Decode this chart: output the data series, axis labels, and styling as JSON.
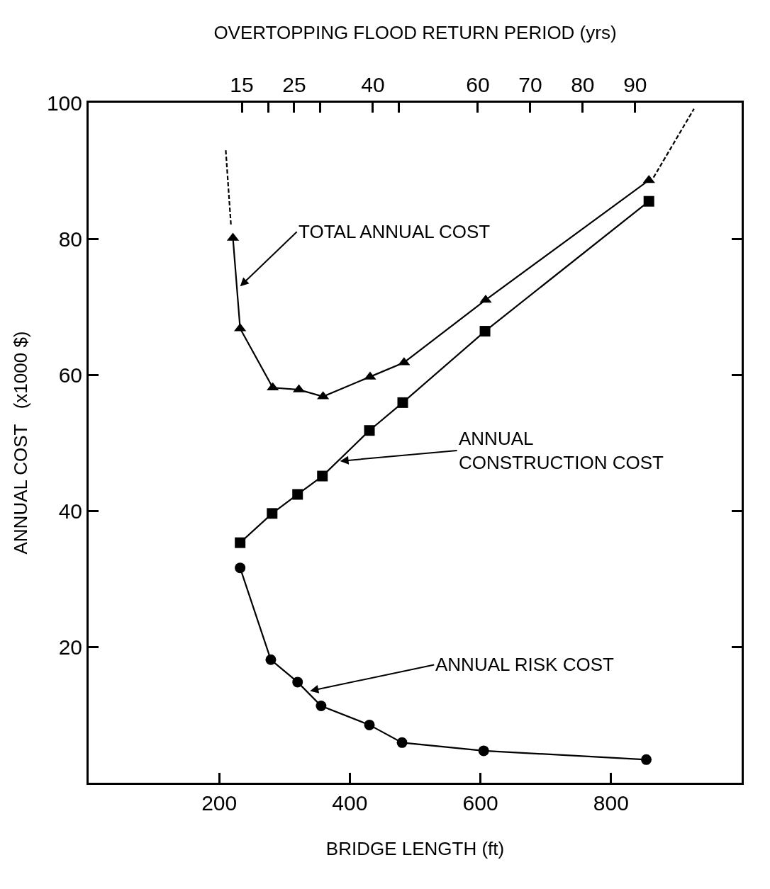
{
  "chart_data": {
    "type": "line",
    "xlabel": "BRIDGE LENGTH (ft)",
    "ylabel": "ANNUAL COST   (x1000 $)",
    "x2label": "OVERTOPPING FLOOD RETURN PERIOD (yrs)",
    "series": [
      {
        "color": "#000000",
        "marker": "triangle",
        "line_style": "solid",
        "x": [
          221,
          232,
          282,
          322,
          359,
          431,
          483,
          608,
          858
        ],
        "values": [
          80.1,
          66.8,
          58.1,
          57.8,
          56.8,
          59.7,
          61.8,
          71.0,
          88.6
        ]
      },
      {
        "color": "#000000",
        "marker": "square",
        "line_style": "solid",
        "x": [
          232,
          281,
          320,
          358,
          430,
          481,
          607,
          858
        ],
        "values": [
          35.3,
          39.6,
          42.4,
          45.1,
          51.8,
          55.9,
          66.4,
          85.5
        ]
      },
      {
        "color": "#000000",
        "marker": "circle",
        "line_style": "solid",
        "x": [
          232,
          279,
          320,
          356,
          430,
          480,
          605,
          854
        ],
        "values": [
          31.6,
          18.1,
          14.8,
          11.3,
          8.5,
          5.9,
          4.7,
          3.4
        ]
      },
      {
        "color": "#000000",
        "marker": "none",
        "line_style": "dashed",
        "x": [
          210,
          218
        ],
        "values": [
          93,
          82
        ]
      },
      {
        "color": "#000000",
        "marker": "none",
        "line_style": "dashed",
        "x": [
          865,
          927
        ],
        "values": [
          89,
          99.1
        ]
      }
    ],
    "xlim": [
      0,
      1000
    ],
    "xticks": [
      200,
      400,
      600,
      800
    ],
    "ylim": [
      0,
      100
    ],
    "yticks": [
      {
        "value": 0,
        "label": null
      },
      20,
      40,
      60,
      80,
      100
    ],
    "x2lim": [
      -14.2,
      110.3
    ],
    "x2ticks": [
      15,
      {
        "value": 20,
        "label": null
      },
      25,
      {
        "value": 30,
        "label": null
      },
      40,
      {
        "value": 45,
        "label": null
      },
      60,
      70,
      80,
      90
    ],
    "annotations": [
      {
        "text": "TOTAL ANNUAL COST",
        "x": 232,
        "y": 73
      },
      {
        "text": "ANNUAL\nCONSTRUCTION COST",
        "x": 385,
        "y": 47.3
      },
      {
        "text": "ANNUAL RISK COST",
        "x": 339,
        "y": 13.5
      }
    ],
    "grid": false
  }
}
